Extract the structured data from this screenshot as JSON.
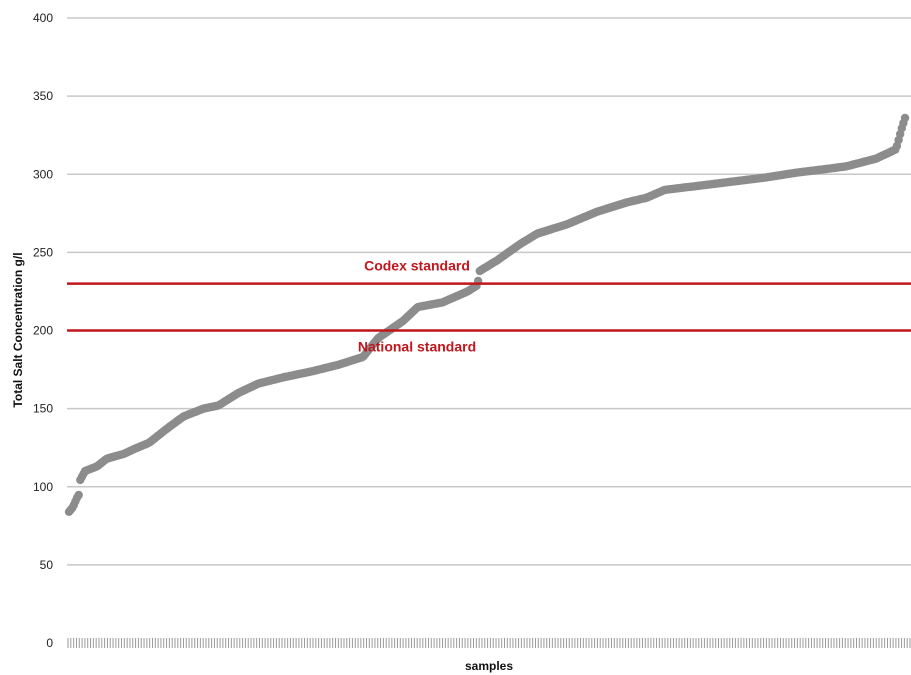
{
  "chart_data": {
    "type": "scatter",
    "xlabel": "samples",
    "ylabel": "Total Salt Concentration g/l",
    "ylim": [
      0,
      400
    ],
    "yticks": [
      0,
      50,
      100,
      150,
      200,
      250,
      300,
      350,
      400
    ],
    "grid": true,
    "legend": "none",
    "colors": {
      "points": "#8c8c8c",
      "reference": "#c0161c",
      "grid": "#c8c8c8"
    },
    "sample_count": 300,
    "series": [
      {
        "values_profile": [
          [
            0,
            84
          ],
          [
            4,
            87
          ],
          [
            8,
            93
          ],
          [
            10,
            95
          ],
          [
            11,
            104
          ],
          [
            16,
            110
          ],
          [
            28,
            113
          ],
          [
            38,
            118
          ],
          [
            55,
            121
          ],
          [
            65,
            124
          ],
          [
            80,
            128
          ],
          [
            100,
            138
          ],
          [
            115,
            145
          ],
          [
            135,
            150
          ],
          [
            150,
            152
          ],
          [
            170,
            160
          ],
          [
            190,
            166
          ],
          [
            215,
            170
          ],
          [
            245,
            174
          ],
          [
            270,
            178
          ],
          [
            295,
            183
          ],
          [
            310,
            195
          ],
          [
            335,
            206
          ],
          [
            350,
            215
          ],
          [
            375,
            218
          ],
          [
            400,
            225
          ],
          [
            410,
            229
          ],
          [
            412,
            238
          ],
          [
            430,
            245
          ],
          [
            452,
            255
          ],
          [
            470,
            262
          ],
          [
            500,
            268
          ],
          [
            530,
            276
          ],
          [
            560,
            282
          ],
          [
            580,
            285
          ],
          [
            598,
            290
          ],
          [
            650,
            294
          ],
          [
            700,
            298
          ],
          [
            730,
            301
          ],
          [
            780,
            305
          ],
          [
            810,
            310
          ],
          [
            830,
            316
          ],
          [
            836,
            330
          ],
          [
            839,
            336
          ]
        ],
        "profile_x_max": 839
      }
    ],
    "reference_lines": [
      {
        "name": "Codex standard",
        "value": 230,
        "label_position": "above"
      },
      {
        "name": "National standard",
        "value": 200,
        "label_position": "below"
      }
    ]
  }
}
